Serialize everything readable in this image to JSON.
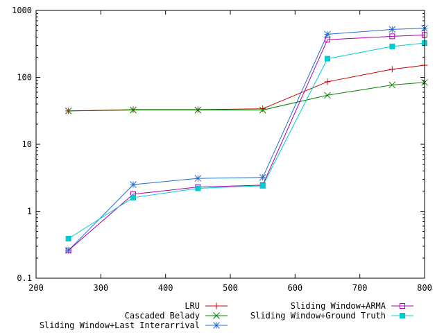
{
  "chart_data": {
    "type": "line",
    "title": "",
    "xlabel": "",
    "ylabel": "",
    "xlim": [
      200,
      800
    ],
    "ylim": [
      0.1,
      1000
    ],
    "yscale": "log",
    "grid": false,
    "legend_position": "bottom",
    "x_ticks": [
      "200",
      "300",
      "400",
      "500",
      "600",
      "700",
      "800"
    ],
    "x_tick_values": [
      200,
      300,
      400,
      500,
      600,
      700,
      800
    ],
    "y_ticks": [
      "0.1",
      "1",
      "10",
      "100",
      "1000"
    ],
    "y_tick_values": [
      0.1,
      1,
      10,
      100,
      1000
    ],
    "series": [
      {
        "name": "LRU",
        "color": "#cc0000",
        "marker": "plus",
        "x": [
          250,
          350,
          450,
          550,
          650,
          750,
          800
        ],
        "values": [
          31.5,
          33,
          33,
          34,
          86,
          132,
          152
        ]
      },
      {
        "name": "Cascaded Belady",
        "color": "#008000",
        "marker": "cross",
        "x": [
          250,
          350,
          450,
          550,
          650,
          750,
          800
        ],
        "values": [
          31.5,
          32.5,
          32.5,
          32.5,
          54,
          77,
          84
        ]
      },
      {
        "name": "Sliding Window+Last Interarrival",
        "color": "#1f6fd6",
        "marker": "star",
        "x": [
          250,
          350,
          450,
          550,
          650,
          750,
          800
        ],
        "values": [
          0.26,
          2.5,
          3.1,
          3.2,
          440,
          520,
          540
        ]
      },
      {
        "name": "Sliding Window+ARMA",
        "color": "#aa00aa",
        "marker": "open-square",
        "x": [
          250,
          350,
          450,
          550,
          650,
          750,
          800
        ],
        "values": [
          0.26,
          1.8,
          2.3,
          2.45,
          365,
          410,
          430
        ]
      },
      {
        "name": "Sliding Window+Ground Truth",
        "color": "#00cccc",
        "marker": "filled-square",
        "x": [
          250,
          350,
          450,
          550,
          650,
          750,
          800
        ],
        "values": [
          0.39,
          1.6,
          2.2,
          2.4,
          190,
          290,
          325
        ]
      }
    ]
  }
}
